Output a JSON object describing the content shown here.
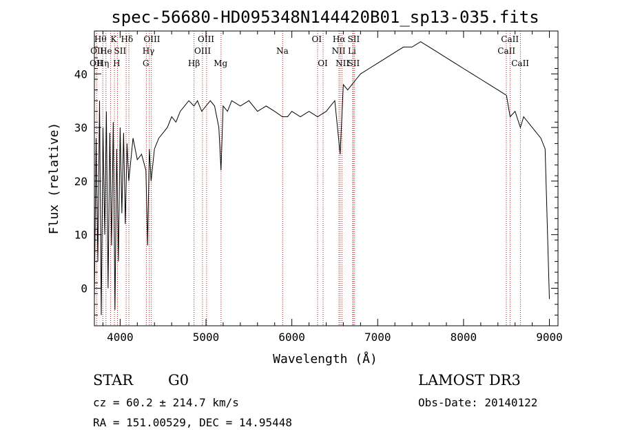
{
  "chart_data": {
    "type": "line",
    "title": "spec-56680-HD095348N144420B01_sp13-035.fits",
    "xlabel": "Wavelength (Å)",
    "ylabel": "Flux (relative)",
    "xlim": [
      3700,
      9100
    ],
    "ylim": [
      -7,
      48
    ],
    "x_ticks": [
      4000,
      5000,
      6000,
      7000,
      8000,
      9000
    ],
    "y_ticks": [
      0,
      10,
      20,
      30,
      40
    ],
    "series": [
      {
        "name": "flux",
        "x": [
          3700,
          3720,
          3740,
          3760,
          3780,
          3800,
          3820,
          3840,
          3860,
          3880,
          3900,
          3920,
          3940,
          3960,
          3980,
          4000,
          4020,
          4040,
          4060,
          4080,
          4100,
          4150,
          4200,
          4250,
          4300,
          4320,
          4340,
          4360,
          4400,
          4450,
          4500,
          4550,
          4600,
          4650,
          4700,
          4750,
          4800,
          4860,
          4900,
          4950,
          5000,
          5050,
          5100,
          5150,
          5175,
          5200,
          5250,
          5300,
          5400,
          5500,
          5600,
          5700,
          5800,
          5890,
          5950,
          6000,
          6100,
          6200,
          6300,
          6400,
          6450,
          6500,
          6563,
          6600,
          6650,
          6700,
          6750,
          6800,
          6900,
          7000,
          7100,
          7200,
          7300,
          7400,
          7500,
          7600,
          7700,
          7800,
          7900,
          8000,
          8100,
          8200,
          8300,
          8400,
          8500,
          8542,
          8600,
          8662,
          8700,
          8800,
          8900,
          8950,
          9000
        ],
        "y": [
          -2,
          28,
          5,
          35,
          -5,
          30,
          10,
          33,
          0,
          29,
          8,
          31,
          -4,
          26,
          5,
          30,
          14,
          29,
          12,
          27,
          20,
          28,
          24,
          25,
          22,
          8,
          26,
          20,
          26,
          28,
          29,
          30,
          32,
          31,
          33,
          34,
          35,
          34,
          35,
          33,
          34,
          35,
          34,
          30,
          22,
          34,
          33,
          35,
          34,
          35,
          33,
          34,
          33,
          32,
          32,
          33,
          32,
          33,
          32,
          33,
          34,
          35,
          25,
          38,
          37,
          38,
          39,
          40,
          41,
          42,
          43,
          44,
          45,
          45,
          46,
          45,
          44,
          43,
          42,
          41,
          40,
          39,
          38,
          37,
          36,
          32,
          33,
          30,
          32,
          30,
          28,
          26,
          -2
        ]
      }
    ],
    "lines": [
      {
        "name": "Hθ",
        "x": 3798
      },
      {
        "name": "Hη",
        "x": 3835
      },
      {
        "name": "OII",
        "x": 3727
      },
      {
        "name": "K",
        "x": 3934
      },
      {
        "name": "H",
        "x": 3969
      },
      {
        "name": "He",
        "x": 3889
      },
      {
        "name": "SII",
        "x": 4070
      },
      {
        "name": "Hδ",
        "x": 4102
      },
      {
        "name": "OIII",
        "x": 4363
      },
      {
        "name": "Hγ",
        "x": 4340
      },
      {
        "name": "G",
        "x": 4305
      },
      {
        "name": "Hβ",
        "x": 4861
      },
      {
        "name": "OIII",
        "x": 4959
      },
      {
        "name": "OIII",
        "x": 5007
      },
      {
        "name": "Mg",
        "x": 5175
      },
      {
        "name": "Na",
        "x": 5893
      },
      {
        "name": "OI",
        "x": 6300
      },
      {
        "name": "OI",
        "x": 6364
      },
      {
        "name": "Hα",
        "x": 6563
      },
      {
        "name": "NII",
        "x": 6548
      },
      {
        "name": "NII",
        "x": 6583
      },
      {
        "name": "Li",
        "x": 6708
      },
      {
        "name": "SII",
        "x": 6716
      },
      {
        "name": "SII",
        "x": 6731
      },
      {
        "name": "CaII",
        "x": 8498
      },
      {
        "name": "CaII",
        "x": 8542
      },
      {
        "name": "CaII",
        "x": 8662
      }
    ],
    "line_labels": [
      {
        "text": "Hθ",
        "x": 3770,
        "row": 1
      },
      {
        "text": "K",
        "x": 3925,
        "row": 1
      },
      {
        "text": "Hδ",
        "x": 4080,
        "row": 1
      },
      {
        "text": "OIII",
        "x": 4370,
        "row": 1
      },
      {
        "text": "OIII",
        "x": 5000,
        "row": 1
      },
      {
        "text": "OI",
        "x": 6290,
        "row": 1
      },
      {
        "text": "Hα",
        "x": 6550,
        "row": 1
      },
      {
        "text": "SII",
        "x": 6720,
        "row": 1
      },
      {
        "text": "CaII",
        "x": 8540,
        "row": 1
      },
      {
        "text": "OII",
        "x": 3730,
        "row": 2
      },
      {
        "text": "He",
        "x": 3835,
        "row": 2
      },
      {
        "text": "SII",
        "x": 4000,
        "row": 2
      },
      {
        "text": "Hγ",
        "x": 4330,
        "row": 2
      },
      {
        "text": "OIII",
        "x": 4960,
        "row": 2
      },
      {
        "text": "Na",
        "x": 5890,
        "row": 2
      },
      {
        "text": "NII",
        "x": 6545,
        "row": 2
      },
      {
        "text": "Li",
        "x": 6700,
        "row": 2
      },
      {
        "text": "CaII",
        "x": 8500,
        "row": 2
      },
      {
        "text": "OII",
        "x": 3722,
        "row": 3
      },
      {
        "text": "Hη",
        "x": 3800,
        "row": 3
      },
      {
        "text": "H",
        "x": 3960,
        "row": 3
      },
      {
        "text": "G",
        "x": 4300,
        "row": 3
      },
      {
        "text": "Hβ",
        "x": 4860,
        "row": 3
      },
      {
        "text": "Mg",
        "x": 5170,
        "row": 3
      },
      {
        "text": "OI",
        "x": 6360,
        "row": 3
      },
      {
        "text": "NII",
        "x": 6590,
        "row": 3
      },
      {
        "text": "SII",
        "x": 6720,
        "row": 3
      },
      {
        "text": "CaII",
        "x": 8660,
        "row": 3
      }
    ]
  },
  "info": {
    "object_class": "STAR",
    "subclass": "G0",
    "survey": "LAMOST DR3",
    "cz": "cz = 60.2 ± 214.7 km/s",
    "obs_date": "Obs-Date: 20140122",
    "coords": "RA = 151.00529, DEC =  14.95448"
  }
}
